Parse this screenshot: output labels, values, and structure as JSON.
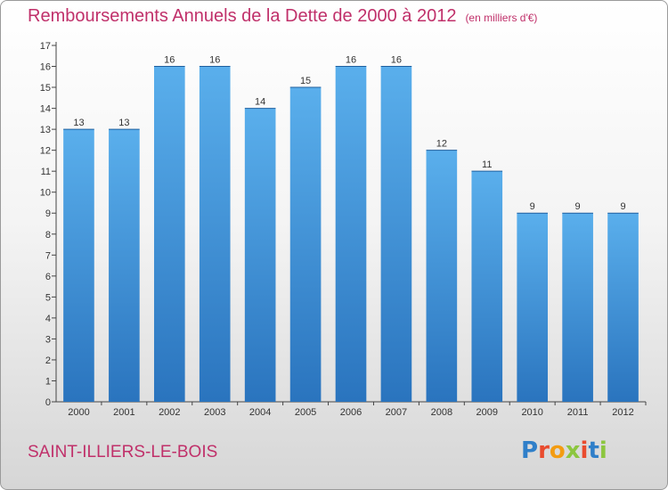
{
  "chart_data": {
    "type": "bar",
    "title": "Remboursements Annuels de la Dette de 2000 à 2012",
    "subtitle": "(en milliers d'€)",
    "categories": [
      "2000",
      "2001",
      "2002",
      "2003",
      "2004",
      "2005",
      "2006",
      "2007",
      "2008",
      "2009",
      "2010",
      "2011",
      "2012"
    ],
    "values": [
      13,
      13,
      16,
      16,
      14,
      15,
      16,
      16,
      12,
      11,
      9,
      9,
      9
    ],
    "ylim": [
      0,
      17
    ],
    "yticks": [
      0,
      1,
      2,
      3,
      4,
      5,
      6,
      7,
      8,
      9,
      10,
      11,
      12,
      13,
      14,
      15,
      16,
      17
    ],
    "grid": false,
    "bar_color": "#3d8fd6",
    "bar_color_light": "#5aafec",
    "bar_color_dark": "#2a74be",
    "title_color": "#c0306a"
  },
  "footer": {
    "commune": "SAINT-ILLIERS-LE-BOIS",
    "logo_text": "Proxiti"
  }
}
